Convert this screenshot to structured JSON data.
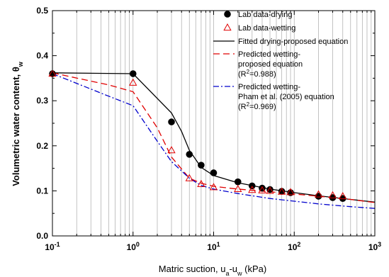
{
  "chart_data": {
    "type": "scatter",
    "xlabel": "Matric suction, u",
    "xlabel_sub_a": "a",
    "xlabel_mid": "-u",
    "xlabel_sub_w": "w",
    "xlabel_unit": " (kPa)",
    "ylabel": "Volumetric water content, θ",
    "ylabel_sub": "w",
    "x_scale": "log",
    "xlim": [
      0.1,
      1000
    ],
    "ylim": [
      0.0,
      0.5
    ],
    "grid": true,
    "legend_placement": "top-right",
    "x_tick_labels": [
      {
        "value": 0.1,
        "base": "10",
        "exp": "-1"
      },
      {
        "value": 1,
        "base": "10",
        "exp": "0"
      },
      {
        "value": 10,
        "base": "10",
        "exp": "1"
      },
      {
        "value": 100,
        "base": "10",
        "exp": "2"
      },
      {
        "value": 1000,
        "base": "10",
        "exp": "3"
      }
    ],
    "y_ticks": [
      0.0,
      0.1,
      0.2,
      0.3,
      0.4,
      0.5
    ],
    "y_tick_labels": [
      "0.0",
      "0.1",
      "0.2",
      "0.3",
      "0.4",
      "0.5"
    ],
    "series": [
      {
        "key": "drying_lab",
        "name": "Lab data-drying",
        "kind": "marker-filled-circle",
        "color": "#000000",
        "x": [
          0.1,
          1,
          3,
          5,
          7,
          10,
          20,
          30,
          40,
          50,
          70,
          90,
          200,
          300,
          400
        ],
        "y": [
          0.36,
          0.36,
          0.253,
          0.181,
          0.157,
          0.14,
          0.12,
          0.111,
          0.106,
          0.103,
          0.099,
          0.096,
          0.088,
          0.085,
          0.083
        ]
      },
      {
        "key": "wetting_lab",
        "name": "Lab data-wetting",
        "kind": "marker-open-triangle",
        "color": "#e00000",
        "x": [
          0.1,
          1,
          3,
          5,
          7,
          10,
          20,
          30,
          40,
          50,
          70,
          90,
          200,
          300,
          400
        ],
        "y": [
          0.36,
          0.34,
          0.19,
          0.128,
          0.115,
          0.108,
          0.104,
          0.102,
          0.101,
          0.1,
          0.098,
          0.097,
          0.092,
          0.09,
          0.088
        ]
      },
      {
        "key": "drying_fit",
        "name": "Fitted drying-proposed equation",
        "kind": "line-solid",
        "color": "#000000",
        "x": [
          0.1,
          1,
          3,
          4,
          5,
          7,
          10,
          20,
          50,
          100,
          200,
          500,
          1000
        ],
        "y": [
          0.362,
          0.36,
          0.273,
          0.232,
          0.19,
          0.152,
          0.134,
          0.118,
          0.104,
          0.096,
          0.089,
          0.081,
          0.075
        ]
      },
      {
        "key": "wetting_pred_proposed",
        "name_lines": [
          "Predicted wetting-",
          "proposed equation"
        ],
        "r2_prefix": "(R",
        "r2_sup": "2",
        "r2_suffix": "=0.988)",
        "kind": "line-dashed",
        "color": "#e00000",
        "x": [
          0.1,
          0.5,
          1,
          2,
          3,
          5,
          7,
          10,
          20,
          50,
          100,
          200,
          500,
          1000
        ],
        "y": [
          0.362,
          0.335,
          0.32,
          0.24,
          0.175,
          0.128,
          0.117,
          0.11,
          0.104,
          0.098,
          0.093,
          0.088,
          0.081,
          0.074
        ]
      },
      {
        "key": "wetting_pred_pham",
        "name_lines": [
          "Predicted wetting-",
          "Pham et al. (2005) equation"
        ],
        "r2_prefix": "(R",
        "r2_sup": "2",
        "r2_suffix": "=0.969)",
        "kind": "line-dashdot",
        "color": "#0000cc",
        "x": [
          0.1,
          0.5,
          1,
          2,
          3,
          5,
          7,
          10,
          20,
          50,
          100,
          200,
          500,
          1000
        ],
        "y": [
          0.36,
          0.31,
          0.289,
          0.21,
          0.165,
          0.128,
          0.112,
          0.104,
          0.094,
          0.083,
          0.077,
          0.071,
          0.065,
          0.061
        ]
      }
    ]
  }
}
